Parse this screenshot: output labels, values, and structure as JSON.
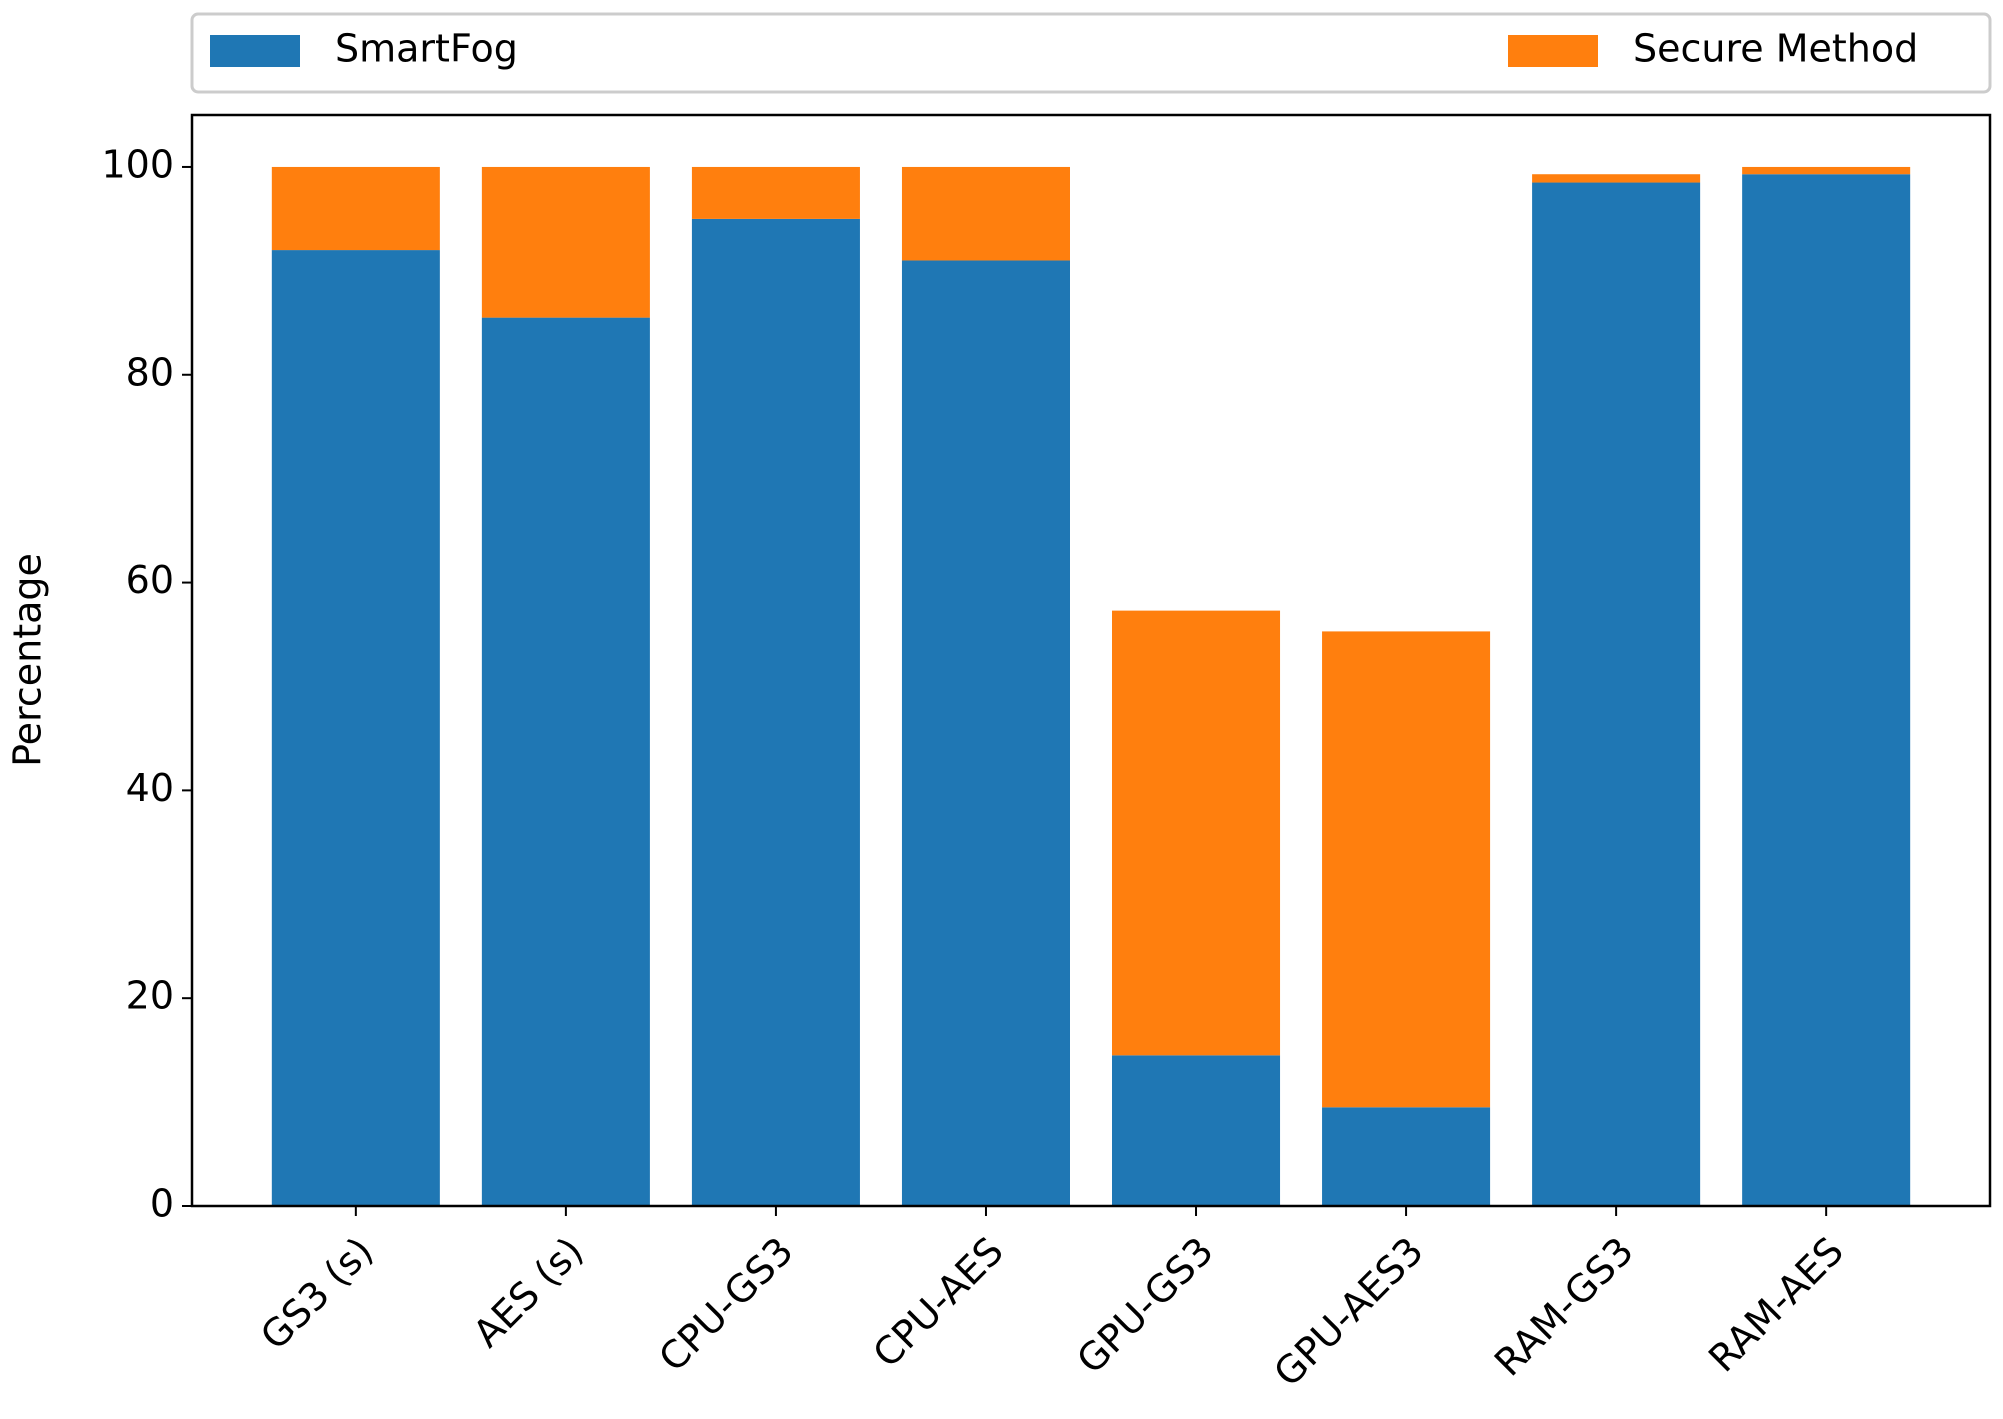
{
  "chart_data": {
    "type": "stacked_bar",
    "categories": [
      "GS3 (s)",
      "AES (s)",
      "CPU-GS3",
      "CPU-AES",
      "GPU-GS3",
      "GPU-AES3",
      "RAM-GS3",
      "RAM-AES"
    ],
    "series": [
      {
        "name": "SmartFog",
        "color": "#1f77b4",
        "values": [
          92,
          85.5,
          95,
          91,
          14.5,
          9.5,
          98.5,
          99.3
        ]
      },
      {
        "name": "Secure Method",
        "color": "#ff7f0e",
        "values": [
          8,
          14.5,
          5,
          9,
          42.8,
          45.8,
          0.8,
          0.7
        ]
      }
    ],
    "ylabel": "Percentage",
    "ylim": [
      0,
      105
    ],
    "yticks": [
      0,
      20,
      40,
      60,
      80,
      100
    ]
  }
}
